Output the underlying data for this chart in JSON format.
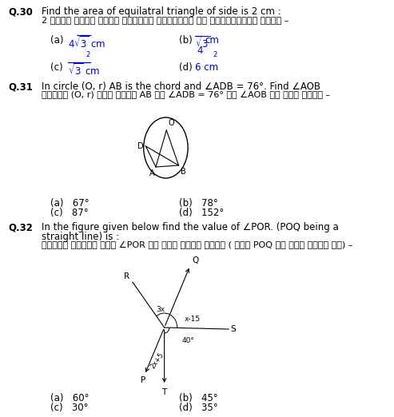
{
  "bg_color": "#ffffff",
  "text_color": "#000000",
  "blue_color": "#0000cd",
  "fig_width": 4.93,
  "fig_height": 5.22,
  "dpi": 100,
  "q30_num": "Q.30",
  "q30_en": "Find the area of equilatral triangle of side is 2 cm :",
  "q30_hi": "2 सेमी भुजा वाले समबाहु त्रिभुज का क्षेत्रफल होगा –",
  "q31_num": "Q.31",
  "q31_en": "In circle (O, r) AB is the chord and ∠ADB = 76°. Find ∠AOB",
  "q31_hi": "वृत्त (O, r) में जीवा AB है ∠ADB = 76° तो ∠AOB का मान होगा –",
  "q32_num": "Q.32",
  "q32_en1": "In the figure given below find the value of ∠POR. (POQ being a",
  "q32_en2": "straight line) is :",
  "q32_hi": "निम्न आकृति में ∠POR का मान क्या होगा ( यदि POQ एक सरल रेखा है) –"
}
